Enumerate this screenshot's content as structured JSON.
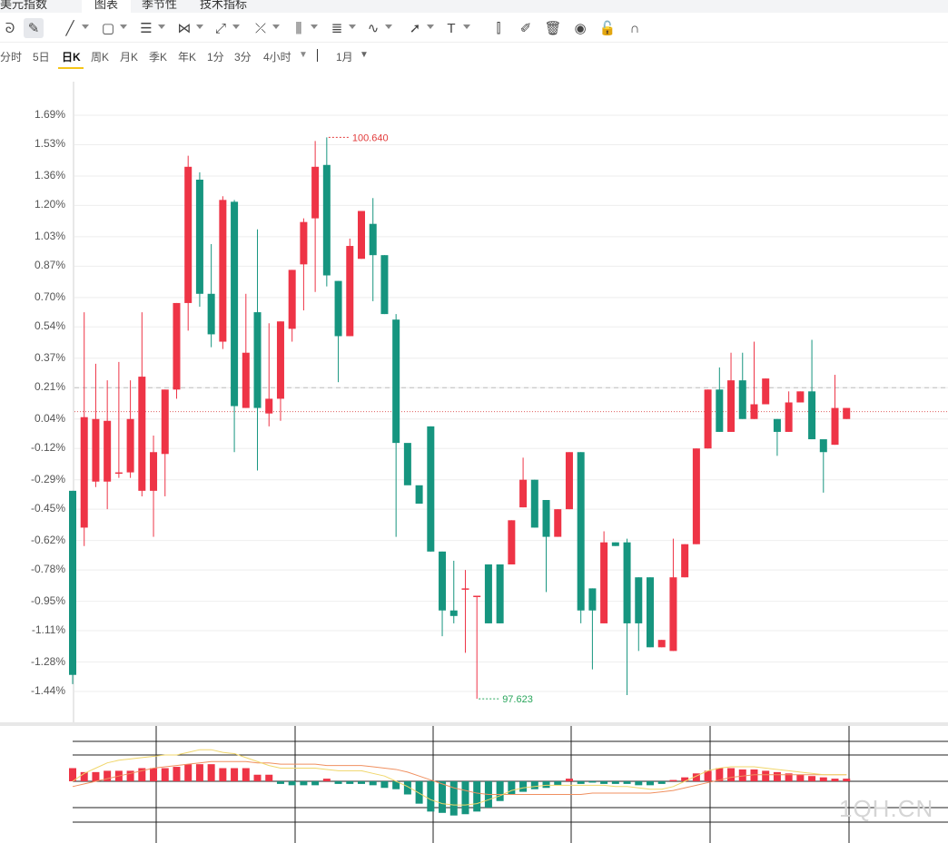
{
  "header": {
    "tabs": [
      {
        "label": "美元指数"
      },
      {
        "label": "图表"
      },
      {
        "label": "季节性"
      },
      {
        "label": "技术指标"
      }
    ],
    "active_tab": 1
  },
  "toolbar": {
    "items": [
      {
        "name": "magnet-tool-icon",
        "glyph": "ᘐ"
      },
      {
        "name": "pen-tool-icon",
        "glyph": "✎"
      },
      {
        "name": "line-tool-icon",
        "glyph": "╱"
      },
      {
        "name": "rect-tool-icon",
        "glyph": "▢"
      },
      {
        "name": "channel-tool-icon",
        "glyph": "☰"
      },
      {
        "name": "pattern-tool-icon",
        "glyph": "⋈"
      },
      {
        "name": "trend-tool-icon",
        "glyph": "⤢"
      },
      {
        "name": "fork-tool-icon",
        "glyph": "⤫"
      },
      {
        "name": "gann-tool-icon",
        "glyph": "⫼"
      },
      {
        "name": "fib-tool-icon",
        "glyph": "≣"
      },
      {
        "name": "curve-tool-icon",
        "glyph": "∿"
      },
      {
        "name": "arrow-tool-icon",
        "glyph": "➚"
      },
      {
        "name": "text-tool-icon",
        "glyph": "T"
      },
      {
        "name": "measure-tool-icon",
        "glyph": "⫿"
      },
      {
        "name": "edit-tool-icon",
        "glyph": "✐"
      },
      {
        "name": "trash-icon",
        "glyph": "🗑"
      },
      {
        "name": "eye-icon",
        "glyph": "◉"
      },
      {
        "name": "lock-icon",
        "glyph": "🔓"
      },
      {
        "name": "magnet-icon",
        "glyph": "∩"
      }
    ]
  },
  "periods": {
    "items": [
      "分时",
      "5日",
      "日K",
      "周K",
      "月K",
      "季K",
      "年K",
      "1分",
      "3分",
      "4小时"
    ],
    "active": 2,
    "more_caret": "▼",
    "range_label": "1月",
    "range_caret": "▼"
  },
  "chart_data": {
    "type": "candlestick",
    "y_axis_labels": [
      "1.69%",
      "1.53%",
      "1.36%",
      "1.20%",
      "1.03%",
      "0.87%",
      "0.70%",
      "0.54%",
      "0.37%",
      "0.21%",
      "0.04%",
      "-0.12%",
      "-0.29%",
      "-0.45%",
      "-0.62%",
      "-0.78%",
      "-0.95%",
      "-1.11%",
      "-1.28%",
      "-1.44%"
    ],
    "y_axis_values": [
      1.69,
      1.53,
      1.36,
      1.2,
      1.03,
      0.87,
      0.7,
      0.54,
      0.37,
      0.21,
      0.04,
      -0.12,
      -0.29,
      -0.45,
      -0.62,
      -0.78,
      -0.95,
      -1.11,
      -1.28,
      -1.44
    ],
    "max_label": "100.640",
    "min_label": "97.623",
    "reference_line_pct": 0.21,
    "last_close_pct": 0.08,
    "candles": [
      [
        -0.35,
        -1.35,
        -0.35,
        -1.4
      ],
      [
        -0.55,
        0.05,
        0.62,
        -0.65
      ],
      [
        -0.3,
        0.04,
        0.34,
        -0.33
      ],
      [
        -0.3,
        0.03,
        0.25,
        -0.45
      ],
      [
        -0.25,
        -0.25,
        0.35,
        -0.28
      ],
      [
        -0.25,
        0.04,
        0.25,
        -0.28
      ],
      [
        -0.35,
        0.27,
        0.62,
        -0.38
      ],
      [
        -0.35,
        -0.14,
        -0.05,
        -0.6
      ],
      [
        -0.15,
        0.2,
        0.2,
        -0.38
      ],
      [
        0.2,
        0.67,
        0.67,
        0.15
      ],
      [
        0.67,
        1.41,
        1.47,
        0.52
      ],
      [
        1.34,
        0.72,
        1.38,
        0.65
      ],
      [
        0.72,
        0.5,
        0.99,
        0.43
      ],
      [
        0.46,
        1.23,
        1.25,
        0.42
      ],
      [
        1.22,
        0.11,
        1.23,
        -0.14
      ],
      [
        0.1,
        0.4,
        0.72,
        0.1
      ],
      [
        0.62,
        0.1,
        1.07,
        -0.24
      ],
      [
        0.07,
        0.15,
        0.56,
        0.0
      ],
      [
        0.15,
        0.57,
        0.57,
        0.03
      ],
      [
        0.53,
        0.85,
        0.85,
        0.46
      ],
      [
        0.88,
        1.11,
        1.13,
        0.63
      ],
      [
        1.13,
        1.41,
        1.55,
        0.73
      ],
      [
        1.42,
        0.82,
        1.57,
        0.76
      ],
      [
        0.79,
        0.49,
        0.79,
        0.24
      ],
      [
        0.49,
        0.98,
        1.02,
        0.49
      ],
      [
        0.91,
        1.17,
        1.17,
        0.91
      ],
      [
        1.1,
        0.93,
        1.24,
        0.68
      ],
      [
        0.93,
        0.61,
        0.93,
        0.61
      ],
      [
        0.58,
        -0.09,
        0.61,
        -0.6
      ],
      [
        -0.09,
        -0.32,
        -0.32,
        -0.32
      ],
      [
        -0.32,
        -0.42,
        -0.42,
        -0.42
      ],
      [
        0.0,
        -0.68,
        0.0,
        -0.68
      ],
      [
        -0.68,
        -1.0,
        -0.68,
        -1.14
      ],
      [
        -1.0,
        -1.03,
        -0.73,
        -1.07
      ],
      [
        -0.88,
        -0.88,
        -0.78,
        -1.23
      ],
      [
        -0.92,
        -0.92,
        -0.92,
        -1.48
      ],
      [
        -0.75,
        -1.07,
        -0.75,
        -1.07
      ],
      [
        -0.75,
        -1.07,
        -0.75,
        -1.07
      ],
      [
        -0.75,
        -0.51,
        -0.51,
        -0.75
      ],
      [
        -0.44,
        -0.29,
        -0.17,
        -0.44
      ],
      [
        -0.29,
        -0.55,
        -0.29,
        -0.55
      ],
      [
        -0.4,
        -0.6,
        -0.4,
        -0.9
      ],
      [
        -0.6,
        -0.45,
        -0.45,
        -0.6
      ],
      [
        -0.45,
        -0.14,
        -0.14,
        -0.45
      ],
      [
        -0.14,
        -1.0,
        -0.14,
        -1.07
      ],
      [
        -0.88,
        -1.0,
        -0.88,
        -1.32
      ],
      [
        -1.07,
        -0.63,
        -0.57,
        -1.07
      ],
      [
        -0.63,
        -0.65,
        -0.63,
        -0.65
      ],
      [
        -0.63,
        -1.07,
        -0.61,
        -1.46
      ],
      [
        -0.82,
        -1.07,
        -0.82,
        -1.22
      ],
      [
        -0.82,
        -1.2,
        -0.82,
        -1.2
      ],
      [
        -1.2,
        -1.16,
        -1.16,
        -1.2
      ],
      [
        -1.22,
        -0.82,
        -0.61,
        -1.22
      ],
      [
        -0.82,
        -0.64,
        -0.64,
        -0.82
      ],
      [
        -0.64,
        -0.12,
        -0.12,
        -0.64
      ],
      [
        -0.12,
        0.2,
        0.2,
        -0.12
      ],
      [
        0.2,
        -0.03,
        0.32,
        -0.03
      ],
      [
        -0.03,
        0.25,
        0.4,
        -0.03
      ],
      [
        0.25,
        0.04,
        0.4,
        0.04
      ],
      [
        0.04,
        0.12,
        0.46,
        0.04
      ],
      [
        0.12,
        0.26,
        0.26,
        0.12
      ],
      [
        0.04,
        -0.03,
        0.04,
        -0.16
      ],
      [
        -0.03,
        0.13,
        0.19,
        -0.03
      ],
      [
        0.13,
        0.19,
        0.19,
        0.13
      ],
      [
        0.19,
        -0.07,
        0.47,
        -0.07
      ],
      [
        -0.07,
        -0.14,
        -0.14,
        -0.36
      ],
      [
        -0.1,
        0.1,
        0.28,
        -0.1
      ],
      [
        0.04,
        0.1,
        0.1,
        0.04
      ]
    ],
    "macd": {
      "bars": [
        10,
        7,
        7,
        8,
        8,
        8,
        10,
        10,
        10,
        11,
        13,
        13,
        13,
        10,
        10,
        10,
        5,
        5,
        -2,
        -3,
        -3,
        -3,
        2,
        -2,
        -2,
        -2,
        -3,
        -5,
        -6,
        -10,
        -17,
        -23,
        -24,
        -26,
        -25,
        -23,
        -20,
        -15,
        -10,
        -8,
        -6,
        -5,
        -3,
        2,
        -2,
        -1,
        -2,
        -2,
        -2,
        -3,
        -3,
        -2,
        1,
        3,
        6,
        8,
        10,
        10,
        9,
        9,
        8,
        7,
        6,
        5,
        4,
        3,
        2,
        2
      ],
      "dif": [
        0,
        6,
        10,
        14,
        16,
        17,
        18,
        19,
        20,
        20,
        22,
        24,
        24,
        22,
        21,
        18,
        15,
        12,
        10,
        10,
        10,
        10,
        9,
        8,
        8,
        8,
        6,
        4,
        0,
        -4,
        -9,
        -14,
        -17,
        -18,
        -18,
        -17,
        -14,
        -11,
        -7,
        -5,
        -4,
        -3,
        -3,
        -3,
        -3,
        -3,
        -3,
        -4,
        -4,
        -5,
        -6,
        -6,
        -4,
        0,
        4,
        8,
        10,
        11,
        11,
        11,
        10,
        9,
        8,
        7,
        6,
        5,
        5,
        5
      ],
      "dea": [
        -4,
        -2,
        0,
        2,
        4,
        6,
        8,
        10,
        11,
        12,
        13,
        14,
        15,
        15,
        15,
        15,
        14,
        14,
        13,
        13,
        13,
        13,
        12,
        12,
        12,
        12,
        11,
        10,
        9,
        7,
        4,
        1,
        -2,
        -5,
        -7,
        -9,
        -10,
        -10,
        -10,
        -10,
        -10,
        -10,
        -10,
        -10,
        -10,
        -9,
        -9,
        -9,
        -9,
        -9,
        -9,
        -8,
        -7,
        -5,
        -3,
        -1,
        1,
        3,
        4,
        5,
        5,
        5,
        5,
        5,
        5,
        5,
        5,
        5
      ]
    }
  },
  "watermark": "1QH.CN",
  "colors": {
    "up": "#ee3446",
    "down": "#16957f",
    "max_label": "#e23a3a",
    "min_label": "#2aa65c",
    "macd_dif": "#f0d66a",
    "macd_dea": "#f09060",
    "period_underline": "#f5c518"
  }
}
